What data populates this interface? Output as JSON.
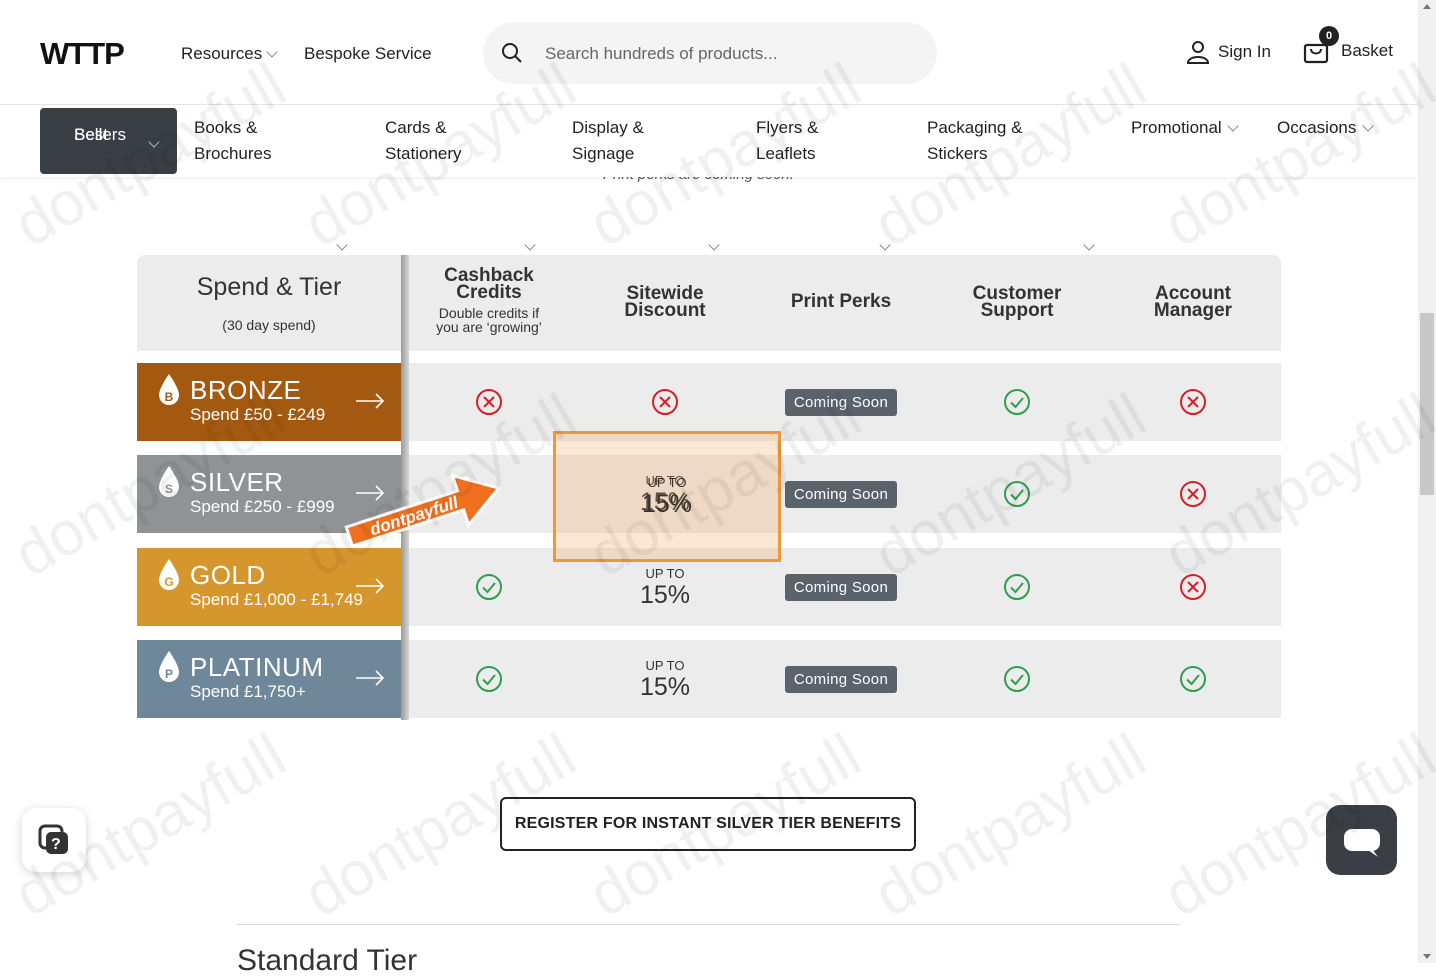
{
  "header": {
    "logo": "WTTP",
    "nav": [
      {
        "label": "Resources",
        "has_dropdown": true
      },
      {
        "label": "Bespoke Service",
        "has_dropdown": false
      }
    ],
    "search_placeholder": "Search hundreds of products...",
    "sign_in": "Sign In",
    "basket_label": "Basket",
    "basket_count": "0"
  },
  "categories": [
    {
      "line1": "Best",
      "line2": "Sellers"
    },
    {
      "line1": "Books &",
      "line2": "Brochures"
    },
    {
      "line1": "Cards &",
      "line2": "Stationery"
    },
    {
      "line1": "Display &",
      "line2": "Signage"
    },
    {
      "line1": "Flyers &",
      "line2": "Leaflets"
    },
    {
      "line1": "Packaging &",
      "line2": "Stickers"
    },
    {
      "line1": "Promotional",
      "line2": ""
    },
    {
      "line1": "Occasions",
      "line2": ""
    }
  ],
  "peek_text": "Print perks are coming soon.",
  "table": {
    "title": "Spend & Tier",
    "subtitle": "(30 day spend)",
    "columns": [
      {
        "line1": "Cashback",
        "line2": "Credits",
        "sub1": "Double credits if",
        "sub2": "you are ‘growing’"
      },
      {
        "line1": "Sitewide",
        "line2": "Discount",
        "sub1": "",
        "sub2": ""
      },
      {
        "line1": "Print Perks",
        "line2": "",
        "sub1": "",
        "sub2": ""
      },
      {
        "line1": "Customer",
        "line2": "Support",
        "sub1": "",
        "sub2": ""
      },
      {
        "line1": "Account",
        "line2": "Manager",
        "sub1": "",
        "sub2": ""
      }
    ],
    "tiers": [
      {
        "letter": "B",
        "name": "BRONZE",
        "range": "Spend £50 - £249",
        "color": "#a35a10",
        "cashback": "no",
        "discount_upto": "",
        "discount": "",
        "perks": "Coming Soon",
        "support": "yes",
        "manager": "no"
      },
      {
        "letter": "S",
        "name": "SILVER",
        "range": "Spend £250 - £999",
        "color": "#8f9396",
        "cashback": "",
        "discount_upto": "UP TO",
        "discount": "15%",
        "perks": "Coming Soon",
        "support": "yes",
        "manager": "no"
      },
      {
        "letter": "G",
        "name": "GOLD",
        "range": "Spend £1,000 - £1,749",
        "color": "#d4962d",
        "cashback": "yes",
        "discount_upto": "UP TO",
        "discount": "15%",
        "perks": "Coming Soon",
        "support": "yes",
        "manager": "no"
      },
      {
        "letter": "P",
        "name": "PLATINUM",
        "range": "Spend £1,750+",
        "color": "#6e8799",
        "cashback": "yes",
        "discount_upto": "UP TO",
        "discount": "15%",
        "perks": "Coming Soon",
        "support": "yes",
        "manager": "yes"
      }
    ]
  },
  "promo_banner": "dontpayfull",
  "cta_label": "REGISTER FOR INSTANT SILVER TIER BENEFITS",
  "next_section_title": "Standard Tier",
  "watermark": "dontpayfull",
  "colors": {
    "yes": "#2e9e4f",
    "no": "#d21f2a",
    "highlight": "#f0973a",
    "dark": "#3a3f45"
  }
}
